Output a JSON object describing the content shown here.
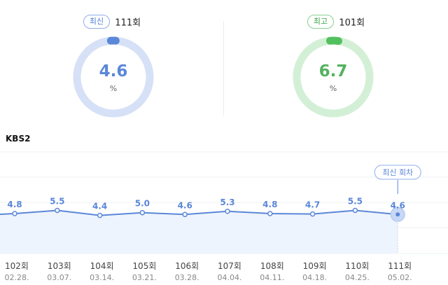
{
  "latest": {
    "badge": "최신",
    "episode": "111회",
    "value": "4.6",
    "unit": "%"
  },
  "best": {
    "badge": "최고",
    "episode": "101회",
    "value": "6.7",
    "unit": "%"
  },
  "channel": "KBS2",
  "colors": {
    "blue": "#5b87d8",
    "blue_track": "#d6e1f7",
    "green": "#52c05e",
    "green_track": "#d3f0d6",
    "area": "#eef4fd"
  },
  "chart_data": {
    "type": "line",
    "categories": [
      "102회",
      "103회",
      "104회",
      "105회",
      "106회",
      "107회",
      "108회",
      "109회",
      "110회",
      "111회"
    ],
    "dates": [
      "02.28.",
      "03.07.",
      "03.14.",
      "03.21.",
      "03.28.",
      "04.04.",
      "04.11.",
      "04.18.",
      "04.25.",
      "05.02."
    ],
    "values": [
      4.8,
      5.5,
      4.4,
      5.0,
      4.6,
      5.3,
      4.8,
      4.7,
      5.5,
      4.6
    ],
    "value_labels": [
      "4.8",
      "5.5",
      "4.4",
      "5.0",
      "4.6",
      "5.3",
      "4.8",
      "4.7",
      "5.5",
      "4.6"
    ],
    "latest_tag": "최신 회차",
    "grid": true
  }
}
